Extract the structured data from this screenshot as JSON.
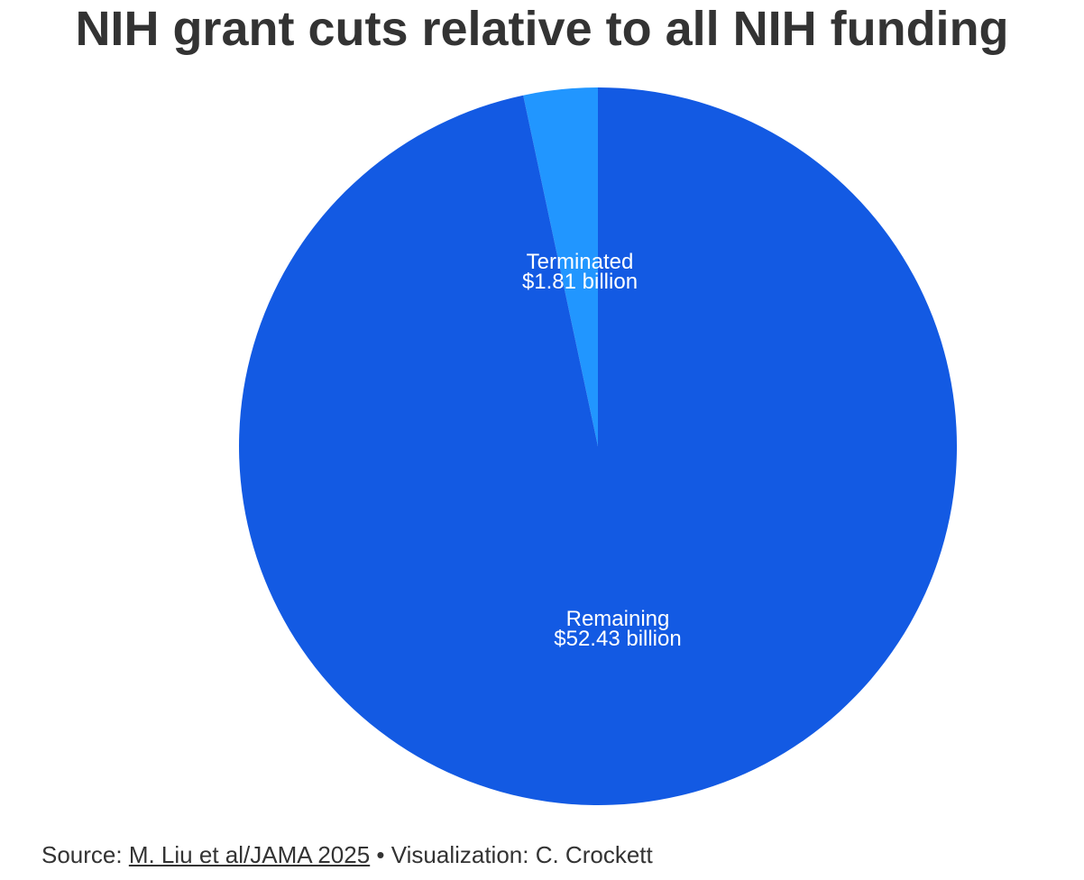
{
  "chart_data": {
    "type": "pie",
    "title": "NIH grant cuts relative to all NIH funding",
    "slices": [
      {
        "label": "Terminated",
        "value": 1.81,
        "value_label": "$1.81 billion",
        "color": "#2196FF"
      },
      {
        "label": "Remaining",
        "value": 52.43,
        "value_label": "$52.43 billion",
        "color": "#135AE3"
      }
    ],
    "start_angle": "12 o'clock",
    "direction": "counterclockwise"
  },
  "footer": {
    "source_prefix": "Source: ",
    "source_link": "M. Liu et al/JAMA 2025",
    "credit": " • Visualization: C. Crockett"
  }
}
